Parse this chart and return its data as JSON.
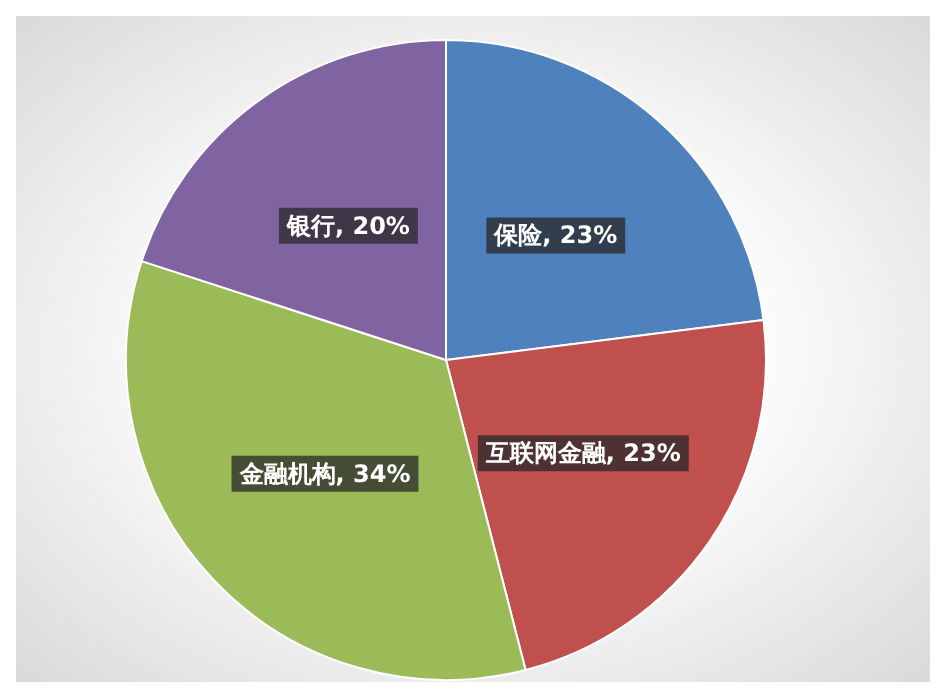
{
  "chart_data": {
    "type": "pie",
    "categories": [
      "保险",
      "互联网金融",
      "金融机构",
      "银行"
    ],
    "values": [
      23,
      23,
      34,
      20
    ],
    "value_labels": [
      ", 23%",
      ", 23%",
      ", 34%",
      ", 20%"
    ],
    "colors": [
      "#4f81bd",
      "#c0504d",
      "#9bbb59",
      "#8064a2"
    ],
    "legend": false
  }
}
